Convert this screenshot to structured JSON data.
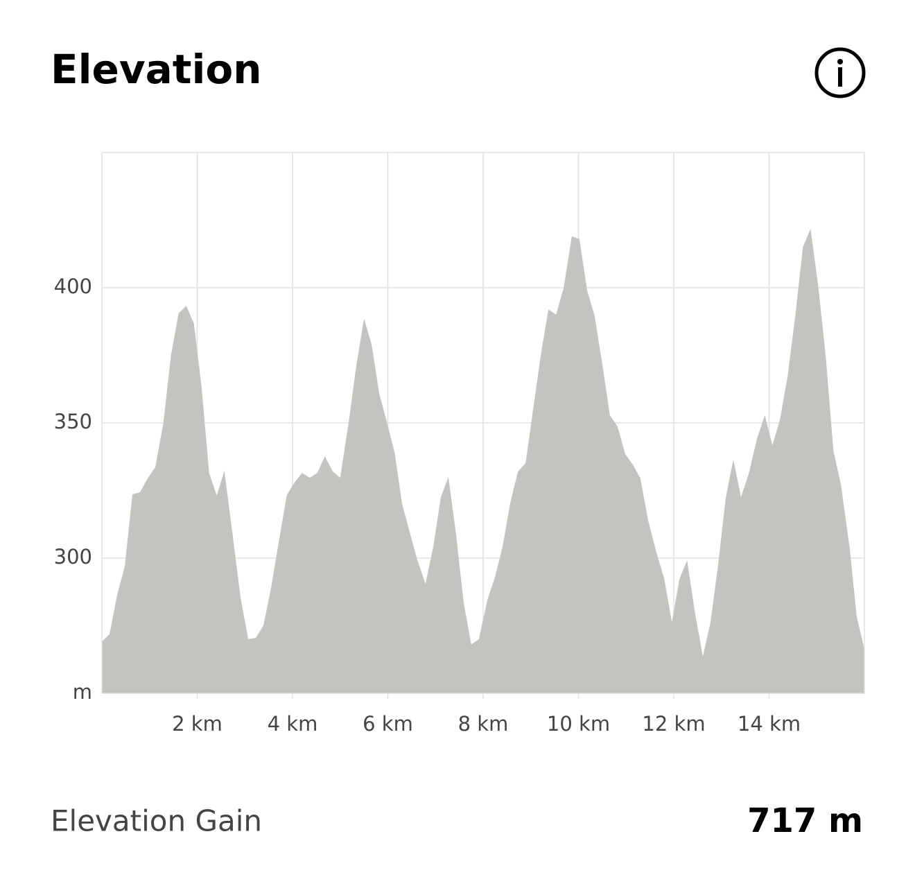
{
  "header": {
    "title": "Elevation"
  },
  "chart_data": {
    "type": "area",
    "color": "#c4c3bd",
    "grid": true,
    "x": [
      0,
      0.16,
      0.32,
      0.48,
      0.64,
      0.8,
      0.96,
      1.12,
      1.29,
      1.45,
      1.61,
      1.77,
      1.93,
      2.09,
      2.25,
      2.41,
      2.57,
      2.74,
      2.91,
      3.07,
      3.23,
      3.39,
      3.55,
      3.71,
      3.88,
      4.04,
      4.2,
      4.36,
      4.52,
      4.68,
      4.84,
      5.0,
      5.18,
      5.34,
      5.5,
      5.66,
      5.82,
      5.98,
      6.14,
      6.3,
      6.46,
      6.62,
      6.79,
      6.95,
      7.11,
      7.27,
      7.43,
      7.59,
      7.75,
      7.91,
      8.09,
      8.25,
      8.41,
      8.57,
      8.73,
      8.89,
      9.05,
      9.21,
      9.37,
      9.53,
      9.69,
      9.86,
      10.02,
      10.18,
      10.34,
      10.5,
      10.66,
      10.82,
      10.98,
      11.14,
      11.3,
      11.46,
      11.62,
      11.8,
      11.96,
      12.12,
      12.28,
      12.44,
      12.61,
      12.77,
      12.93,
      13.09,
      13.25,
      13.41,
      13.57,
      13.75,
      13.91,
      14.07,
      14.23,
      14.39,
      14.55,
      14.71,
      14.87,
      15.03,
      15.19,
      15.35,
      15.51,
      15.69,
      15.84,
      16
    ],
    "values": [
      269.2,
      271.8,
      286.4,
      296.9,
      323.6,
      324.4,
      329.5,
      333.6,
      350,
      375.1,
      390.5,
      393.3,
      386.7,
      363.6,
      331.5,
      323.1,
      332.3,
      309,
      285.4,
      270,
      270.5,
      275.1,
      289,
      305.9,
      323.3,
      327.9,
      331.5,
      329.7,
      331.5,
      337.7,
      332.1,
      329.7,
      350.5,
      371.3,
      388.5,
      379,
      360.8,
      350.3,
      339.2,
      320,
      309.5,
      299.2,
      290.5,
      303.8,
      322.3,
      330,
      309,
      283.8,
      268,
      270,
      284.6,
      293.1,
      304.4,
      320.5,
      332,
      335.1,
      355.1,
      375.1,
      392,
      390,
      400,
      419,
      418,
      399.2,
      389.5,
      371.8,
      352.8,
      348.7,
      338.5,
      334.6,
      329.5,
      314.1,
      303.1,
      292.3,
      276.4,
      292.3,
      299.2,
      280.3,
      263.6,
      276.2,
      297.4,
      322.3,
      336.4,
      322.6,
      331,
      344.4,
      352.8,
      341.8,
      351.3,
      367.4,
      389.7,
      415.1,
      421.8,
      400.8,
      374.4,
      339.7,
      326.9,
      303.8,
      278.2,
      266.4
    ],
    "xlim": [
      0,
      16
    ],
    "ylim": [
      250,
      450
    ],
    "xticks": [
      {
        "value": 2,
        "label": "2 km"
      },
      {
        "value": 4,
        "label": "4 km"
      },
      {
        "value": 6,
        "label": "6 km"
      },
      {
        "value": 8,
        "label": "8 km"
      },
      {
        "value": 10,
        "label": "10 km"
      },
      {
        "value": 12,
        "label": "12 km"
      },
      {
        "value": 14,
        "label": "14 km"
      }
    ],
    "yticks": [
      {
        "value": 250,
        "label": "m"
      },
      300,
      350,
      400
    ]
  },
  "footer": {
    "label": "Elevation Gain",
    "value": "717 m"
  }
}
